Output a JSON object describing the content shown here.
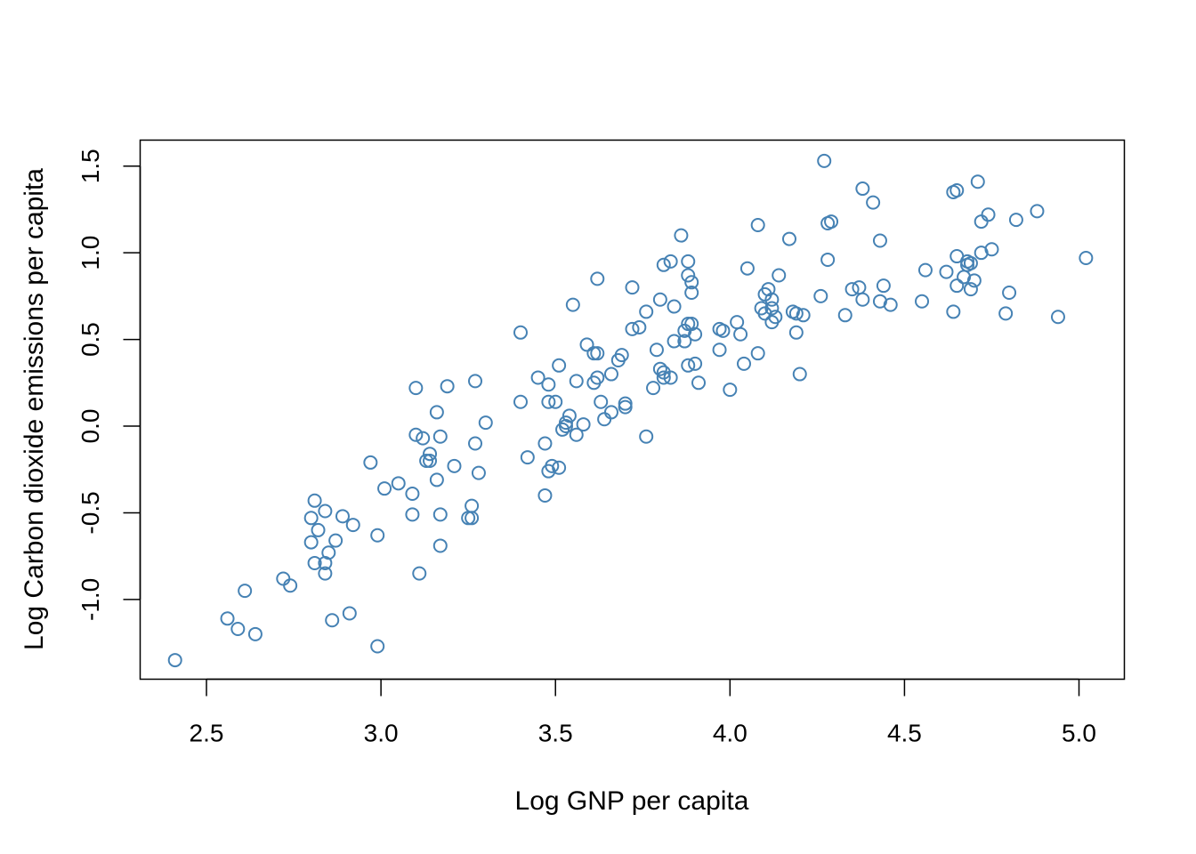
{
  "chart_data": {
    "type": "scatter",
    "title": "",
    "xlabel": "Log GNP per capita",
    "ylabel": "Log Carbon dioxide emissions per capita",
    "xlim": [
      2.31,
      5.13
    ],
    "ylim": [
      -1.46,
      1.65
    ],
    "x_ticks": [
      {
        "value": 2.5,
        "label": "2.5"
      },
      {
        "value": 3.0,
        "label": "3.0"
      },
      {
        "value": 3.5,
        "label": "3.5"
      },
      {
        "value": 4.0,
        "label": "4.0"
      },
      {
        "value": 4.5,
        "label": "4.5"
      },
      {
        "value": 5.0,
        "label": "5.0"
      }
    ],
    "y_ticks": [
      {
        "value": -1.0,
        "label": "-1.0"
      },
      {
        "value": -0.5,
        "label": "-0.5"
      },
      {
        "value": 0.0,
        "label": "0.0"
      },
      {
        "value": 0.5,
        "label": "0.5"
      },
      {
        "value": 1.0,
        "label": "1.0"
      },
      {
        "value": 1.5,
        "label": "1.5"
      }
    ],
    "grid": false,
    "marker": "open-circle",
    "point_color": "#4682b4",
    "points": [
      [
        2.41,
        -1.35
      ],
      [
        2.56,
        -1.11
      ],
      [
        2.59,
        -1.17
      ],
      [
        2.61,
        -0.95
      ],
      [
        2.64,
        -1.2
      ],
      [
        2.72,
        -0.88
      ],
      [
        2.74,
        -0.92
      ],
      [
        2.8,
        -0.53
      ],
      [
        2.8,
        -0.67
      ],
      [
        2.81,
        -0.43
      ],
      [
        2.81,
        -0.79
      ],
      [
        2.82,
        -0.6
      ],
      [
        2.84,
        -0.49
      ],
      [
        2.84,
        -0.79
      ],
      [
        2.84,
        -0.85
      ],
      [
        2.85,
        -0.73
      ],
      [
        2.86,
        -1.12
      ],
      [
        2.87,
        -0.66
      ],
      [
        2.89,
        -0.52
      ],
      [
        2.91,
        -1.08
      ],
      [
        2.92,
        -0.57
      ],
      [
        2.97,
        -0.21
      ],
      [
        2.99,
        -0.63
      ],
      [
        2.99,
        -1.27
      ],
      [
        3.01,
        -0.36
      ],
      [
        3.05,
        -0.33
      ],
      [
        3.09,
        -0.39
      ],
      [
        3.09,
        -0.51
      ],
      [
        3.1,
        0.22
      ],
      [
        3.1,
        -0.05
      ],
      [
        3.11,
        -0.85
      ],
      [
        3.12,
        -0.07
      ],
      [
        3.13,
        -0.2
      ],
      [
        3.14,
        -0.16
      ],
      [
        3.14,
        -0.2
      ],
      [
        3.16,
        0.08
      ],
      [
        3.16,
        -0.31
      ],
      [
        3.17,
        -0.06
      ],
      [
        3.17,
        -0.51
      ],
      [
        3.17,
        -0.69
      ],
      [
        3.19,
        0.23
      ],
      [
        3.21,
        -0.23
      ],
      [
        3.25,
        -0.53
      ],
      [
        3.26,
        -0.53
      ],
      [
        3.26,
        -0.46
      ],
      [
        3.27,
        -0.1
      ],
      [
        3.27,
        0.26
      ],
      [
        3.28,
        -0.27
      ],
      [
        3.3,
        0.02
      ],
      [
        3.4,
        0.54
      ],
      [
        3.4,
        0.14
      ],
      [
        3.42,
        -0.18
      ],
      [
        3.45,
        0.28
      ],
      [
        3.47,
        -0.4
      ],
      [
        3.47,
        -0.1
      ],
      [
        3.48,
        -0.26
      ],
      [
        3.48,
        0.14
      ],
      [
        3.48,
        0.24
      ],
      [
        3.49,
        -0.23
      ],
      [
        3.5,
        0.14
      ],
      [
        3.51,
        0.35
      ],
      [
        3.51,
        -0.24
      ],
      [
        3.52,
        -0.02
      ],
      [
        3.53,
        0.0
      ],
      [
        3.53,
        0.02
      ],
      [
        3.54,
        0.06
      ],
      [
        3.55,
        0.7
      ],
      [
        3.56,
        -0.05
      ],
      [
        3.56,
        0.26
      ],
      [
        3.58,
        0.01
      ],
      [
        3.59,
        0.47
      ],
      [
        3.61,
        0.42
      ],
      [
        3.61,
        0.25
      ],
      [
        3.62,
        0.42
      ],
      [
        3.62,
        0.28
      ],
      [
        3.62,
        0.85
      ],
      [
        3.63,
        0.14
      ],
      [
        3.64,
        0.04
      ],
      [
        3.66,
        0.3
      ],
      [
        3.66,
        0.08
      ],
      [
        3.68,
        0.38
      ],
      [
        3.69,
        0.41
      ],
      [
        3.7,
        0.11
      ],
      [
        3.7,
        0.13
      ],
      [
        3.72,
        0.56
      ],
      [
        3.72,
        0.8
      ],
      [
        3.74,
        0.57
      ],
      [
        3.76,
        0.66
      ],
      [
        3.76,
        -0.06
      ],
      [
        3.78,
        0.22
      ],
      [
        3.79,
        0.44
      ],
      [
        3.8,
        0.73
      ],
      [
        3.8,
        0.33
      ],
      [
        3.81,
        0.28
      ],
      [
        3.81,
        0.31
      ],
      [
        3.81,
        0.93
      ],
      [
        3.83,
        0.95
      ],
      [
        3.83,
        0.28
      ],
      [
        3.84,
        0.49
      ],
      [
        3.84,
        0.69
      ],
      [
        3.86,
        1.1
      ],
      [
        3.87,
        0.49
      ],
      [
        3.87,
        0.55
      ],
      [
        3.88,
        0.59
      ],
      [
        3.88,
        0.35
      ],
      [
        3.88,
        0.87
      ],
      [
        3.88,
        0.95
      ],
      [
        3.89,
        0.83
      ],
      [
        3.89,
        0.59
      ],
      [
        3.89,
        0.77
      ],
      [
        3.9,
        0.53
      ],
      [
        3.9,
        0.36
      ],
      [
        3.91,
        0.25
      ],
      [
        3.97,
        0.56
      ],
      [
        3.97,
        0.44
      ],
      [
        3.98,
        0.55
      ],
      [
        4.0,
        0.21
      ],
      [
        4.02,
        0.6
      ],
      [
        4.03,
        0.53
      ],
      [
        4.04,
        0.36
      ],
      [
        4.05,
        0.91
      ],
      [
        4.08,
        1.16
      ],
      [
        4.08,
        0.42
      ],
      [
        4.09,
        0.68
      ],
      [
        4.1,
        0.65
      ],
      [
        4.1,
        0.76
      ],
      [
        4.11,
        0.79
      ],
      [
        4.12,
        0.73
      ],
      [
        4.12,
        0.68
      ],
      [
        4.12,
        0.6
      ],
      [
        4.13,
        0.63
      ],
      [
        4.14,
        0.87
      ],
      [
        4.17,
        1.08
      ],
      [
        4.18,
        0.66
      ],
      [
        4.19,
        0.65
      ],
      [
        4.19,
        0.54
      ],
      [
        4.2,
        0.3
      ],
      [
        4.21,
        0.64
      ],
      [
        4.26,
        0.75
      ],
      [
        4.27,
        1.53
      ],
      [
        4.28,
        0.96
      ],
      [
        4.28,
        1.17
      ],
      [
        4.29,
        1.18
      ],
      [
        4.33,
        0.64
      ],
      [
        4.35,
        0.79
      ],
      [
        4.37,
        0.8
      ],
      [
        4.38,
        0.73
      ],
      [
        4.38,
        1.37
      ],
      [
        4.41,
        1.29
      ],
      [
        4.43,
        1.07
      ],
      [
        4.43,
        0.72
      ],
      [
        4.44,
        0.81
      ],
      [
        4.46,
        0.7
      ],
      [
        4.55,
        0.72
      ],
      [
        4.56,
        0.9
      ],
      [
        4.62,
        0.89
      ],
      [
        4.64,
        0.66
      ],
      [
        4.64,
        1.35
      ],
      [
        4.65,
        0.98
      ],
      [
        4.65,
        1.36
      ],
      [
        4.65,
        0.81
      ],
      [
        4.67,
        0.86
      ],
      [
        4.68,
        0.95
      ],
      [
        4.68,
        0.93
      ],
      [
        4.69,
        0.79
      ],
      [
        4.69,
        0.94
      ],
      [
        4.7,
        0.84
      ],
      [
        4.71,
        1.41
      ],
      [
        4.72,
        1.18
      ],
      [
        4.72,
        1.0
      ],
      [
        4.74,
        1.22
      ],
      [
        4.75,
        1.02
      ],
      [
        4.79,
        0.65
      ],
      [
        4.8,
        0.77
      ],
      [
        4.82,
        1.19
      ],
      [
        4.88,
        1.24
      ],
      [
        4.94,
        0.63
      ],
      [
        5.02,
        0.97
      ]
    ]
  }
}
